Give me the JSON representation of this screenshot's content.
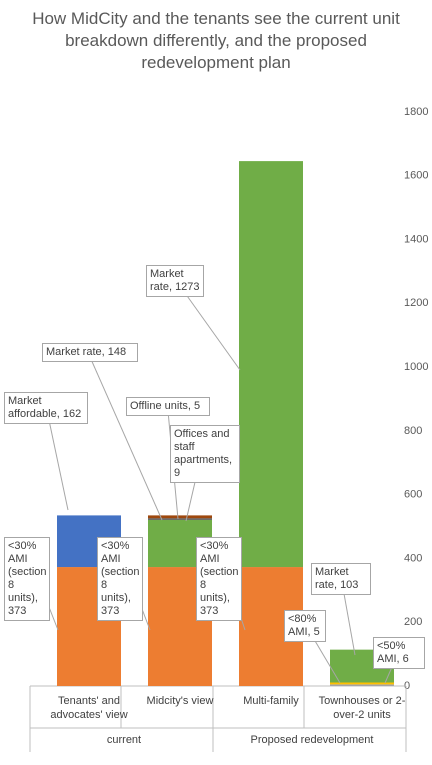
{
  "chart_data": {
    "type": "bar",
    "stacked": true,
    "title": "How MidCity and the tenants see the current unit breakdown differently, and the proposed redevelopment plan",
    "categories": [
      "Tenants' and advocates' view",
      "Midcity's view",
      "Multi-family",
      "Townhouses or 2-over-2 units"
    ],
    "group_labels": [
      "current",
      "Proposed redevelopment"
    ],
    "series": [
      {
        "name": "<30% AMI (section 8 units)",
        "color": "#ED7D31",
        "values": [
          373,
          373,
          373,
          null
        ],
        "value_labels": [
          "<30% AMI (section 8 units), 373",
          "<30% AMI (section 8 units), 373",
          "<30% AMI (section 8 units), 373",
          null
        ]
      },
      {
        "name": "<80% AMI",
        "color": "#A5A5A5",
        "values": [
          null,
          null,
          null,
          5
        ],
        "value_labels": [
          null,
          null,
          null,
          "<80% AMI, 5"
        ]
      },
      {
        "name": "<50% AMI",
        "color": "#FFC000",
        "values": [
          null,
          null,
          null,
          6
        ],
        "value_labels": [
          null,
          null,
          null,
          "<50% AMI, 6"
        ]
      },
      {
        "name": "Market affordable",
        "color": "#4472C4",
        "values": [
          162,
          null,
          null,
          null
        ],
        "value_labels": [
          "Market affordable, 162",
          null,
          null,
          null
        ]
      },
      {
        "name": "Market rate",
        "color": "#70AD47",
        "values": [
          null,
          148,
          1273,
          103
        ],
        "value_labels": [
          null,
          "Market rate, 148",
          "Market rate, 1273",
          "Market rate, 103"
        ]
      },
      {
        "name": "Offline units",
        "color": "#595959",
        "values": [
          null,
          5,
          null,
          null
        ],
        "value_labels": [
          null,
          "Offline units, 5",
          null,
          null
        ]
      },
      {
        "name": "Offices and staff apartments",
        "color": "#9E480E",
        "values": [
          null,
          9,
          null,
          null
        ],
        "value_labels": [
          null,
          "Offices and staff apartments, 9",
          null,
          null
        ]
      }
    ],
    "ylim": [
      0,
      1800
    ],
    "yticks": [
      0,
      200,
      400,
      600,
      800,
      1000,
      1200,
      1400,
      1600,
      1800
    ],
    "grid": false,
    "y_axis_side": "right"
  }
}
